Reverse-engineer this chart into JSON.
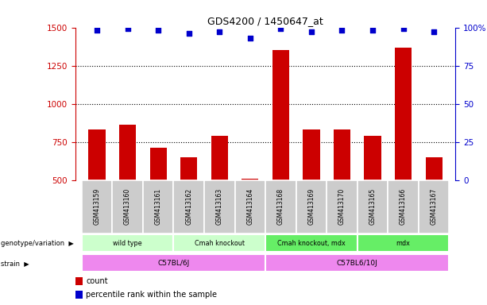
{
  "title": "GDS4200 / 1450647_at",
  "samples": [
    "GSM413159",
    "GSM413160",
    "GSM413161",
    "GSM413162",
    "GSM413163",
    "GSM413164",
    "GSM413168",
    "GSM413169",
    "GSM413170",
    "GSM413165",
    "GSM413166",
    "GSM413167"
  ],
  "counts": [
    830,
    860,
    710,
    650,
    790,
    510,
    1350,
    830,
    830,
    790,
    1370,
    650
  ],
  "percentiles": [
    98,
    99,
    98,
    96,
    97,
    93,
    99,
    97,
    98,
    98,
    99,
    97
  ],
  "ylim_left": [
    500,
    1500
  ],
  "ylim_right": [
    0,
    100
  ],
  "yticks_left": [
    500,
    750,
    1000,
    1250,
    1500
  ],
  "yticks_right": [
    0,
    25,
    50,
    75,
    100
  ],
  "bar_color": "#cc0000",
  "dot_color": "#0000cc",
  "grid_color": "#888888",
  "bar_width": 0.55,
  "genotype_groups": [
    {
      "label": "wild type",
      "start": 0,
      "end": 3,
      "color": "#ccffcc"
    },
    {
      "label": "Cmah knockout",
      "start": 3,
      "end": 6,
      "color": "#ccffcc"
    },
    {
      "label": "Cmah knockout, mdx",
      "start": 6,
      "end": 9,
      "color": "#66ee66"
    },
    {
      "label": "mdx",
      "start": 9,
      "end": 12,
      "color": "#66ee66"
    }
  ],
  "strain_groups": [
    {
      "label": "C57BL/6J",
      "start": 0,
      "end": 6,
      "color": "#ee88ee"
    },
    {
      "label": "C57BL6/10J",
      "start": 6,
      "end": 12,
      "color": "#ee88ee"
    }
  ],
  "legend_count_color": "#cc0000",
  "legend_percentile_color": "#0000cc",
  "left_axis_color": "#cc0000",
  "right_axis_color": "#0000cc",
  "sample_box_color": "#cccccc",
  "sample_box_edge": "#aaaaaa"
}
